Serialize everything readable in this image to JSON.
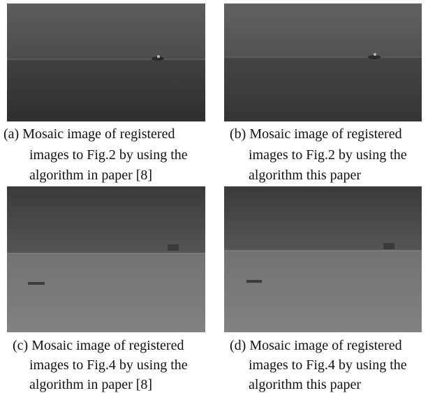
{
  "panels": [
    {
      "caption_lines": [
        "(a) Mosaic image of registered",
        "images to Fig.2 by using the",
        "algorithm in paper [8]"
      ]
    },
    {
      "caption_lines": [
        "(b) Mosaic image of registered",
        "images to Fig.2 by using the",
        "algorithm this paper"
      ]
    },
    {
      "caption_lines": [
        "(c) Mosaic image of registered",
        "images to Fig.4 by using the",
        "algorithm in paper [8]"
      ]
    },
    {
      "caption_lines": [
        "(d) Mosaic image of registered",
        "images to Fig.4 by using the",
        "algorithm this paper"
      ]
    }
  ]
}
